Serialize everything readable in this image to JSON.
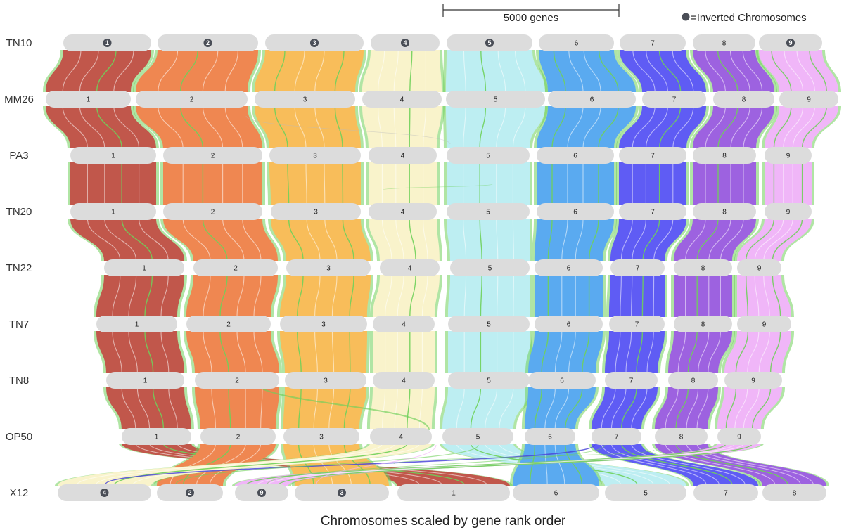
{
  "scale_bar": {
    "label": "5000 genes"
  },
  "legend": {
    "symbol_label": "=Inverted Chromosomes",
    "dot_color": "#4a4e57"
  },
  "footer": {
    "caption": "Chromosomes scaled by gene rank order"
  },
  "colors": {
    "chromosome_fill": "#dcdcdc",
    "inversion_marker": "#4a4e57",
    "segment_highlight": "#6fd05a",
    "translocation_line": "#4b48d8",
    "chromosome_colors": {
      "1": "#c1574b",
      "2": "#ef8751",
      "3": "#f8bd5a",
      "4": "#f9f3cb",
      "5": "#bdeef2",
      "6": "#5aaaf0",
      "7": "#5f5cf4",
      "8": "#9d62e0",
      "9": "#f0b6f8"
    }
  },
  "strains": [
    {
      "name": "TN10",
      "chromosomes": [
        {
          "label": "1",
          "inverted": true
        },
        {
          "label": "2",
          "inverted": true
        },
        {
          "label": "3",
          "inverted": true
        },
        {
          "label": "4",
          "inverted": true
        },
        {
          "label": "5",
          "inverted": true
        },
        {
          "label": "6",
          "inverted": false
        },
        {
          "label": "7",
          "inverted": false
        },
        {
          "label": "8",
          "inverted": false
        },
        {
          "label": "9",
          "inverted": true
        }
      ]
    },
    {
      "name": "MM26",
      "chromosomes": [
        {
          "label": "1",
          "inverted": false
        },
        {
          "label": "2",
          "inverted": false
        },
        {
          "label": "3",
          "inverted": false
        },
        {
          "label": "4",
          "inverted": false
        },
        {
          "label": "5",
          "inverted": false
        },
        {
          "label": "6",
          "inverted": false
        },
        {
          "label": "7",
          "inverted": false
        },
        {
          "label": "8",
          "inverted": false
        },
        {
          "label": "9",
          "inverted": false
        }
      ]
    },
    {
      "name": "PA3",
      "chromosomes": [
        {
          "label": "1",
          "inverted": false
        },
        {
          "label": "2",
          "inverted": false
        },
        {
          "label": "3",
          "inverted": false
        },
        {
          "label": "4",
          "inverted": false
        },
        {
          "label": "5",
          "inverted": false
        },
        {
          "label": "6",
          "inverted": false
        },
        {
          "label": "7",
          "inverted": false
        },
        {
          "label": "8",
          "inverted": false
        },
        {
          "label": "9",
          "inverted": false
        }
      ]
    },
    {
      "name": "TN20",
      "chromosomes": [
        {
          "label": "1",
          "inverted": false
        },
        {
          "label": "2",
          "inverted": false
        },
        {
          "label": "3",
          "inverted": false
        },
        {
          "label": "4",
          "inverted": false
        },
        {
          "label": "5",
          "inverted": false
        },
        {
          "label": "6",
          "inverted": false
        },
        {
          "label": "7",
          "inverted": false
        },
        {
          "label": "8",
          "inverted": false
        },
        {
          "label": "9",
          "inverted": false
        }
      ]
    },
    {
      "name": "TN22",
      "chromosomes": [
        {
          "label": "1",
          "inverted": false
        },
        {
          "label": "2",
          "inverted": false
        },
        {
          "label": "3",
          "inverted": false
        },
        {
          "label": "4",
          "inverted": false
        },
        {
          "label": "5",
          "inverted": false
        },
        {
          "label": "6",
          "inverted": false
        },
        {
          "label": "7",
          "inverted": false
        },
        {
          "label": "8",
          "inverted": false
        },
        {
          "label": "9",
          "inverted": false
        }
      ]
    },
    {
      "name": "TN7",
      "chromosomes": [
        {
          "label": "1",
          "inverted": false
        },
        {
          "label": "2",
          "inverted": false
        },
        {
          "label": "3",
          "inverted": false
        },
        {
          "label": "4",
          "inverted": false
        },
        {
          "label": "5",
          "inverted": false
        },
        {
          "label": "6",
          "inverted": false
        },
        {
          "label": "7",
          "inverted": false
        },
        {
          "label": "8",
          "inverted": false
        },
        {
          "label": "9",
          "inverted": false
        }
      ]
    },
    {
      "name": "TN8",
      "chromosomes": [
        {
          "label": "1",
          "inverted": false
        },
        {
          "label": "2",
          "inverted": false
        },
        {
          "label": "3",
          "inverted": false
        },
        {
          "label": "4",
          "inverted": false
        },
        {
          "label": "5",
          "inverted": false
        },
        {
          "label": "6",
          "inverted": false
        },
        {
          "label": "7",
          "inverted": false
        },
        {
          "label": "8",
          "inverted": false
        },
        {
          "label": "9",
          "inverted": false
        }
      ]
    },
    {
      "name": "OP50",
      "chromosomes": [
        {
          "label": "1",
          "inverted": false
        },
        {
          "label": "2",
          "inverted": false
        },
        {
          "label": "3",
          "inverted": false
        },
        {
          "label": "4",
          "inverted": false
        },
        {
          "label": "5",
          "inverted": false
        },
        {
          "label": "6",
          "inverted": false
        },
        {
          "label": "7",
          "inverted": false
        },
        {
          "label": "8",
          "inverted": false
        },
        {
          "label": "9",
          "inverted": false
        }
      ]
    },
    {
      "name": "X12",
      "chromosomes": [
        {
          "label": "4",
          "inverted": true
        },
        {
          "label": "2",
          "inverted": true
        },
        {
          "label": "9",
          "inverted": true
        },
        {
          "label": "3",
          "inverted": true
        },
        {
          "label": "1",
          "inverted": false
        },
        {
          "label": "6",
          "inverted": false
        },
        {
          "label": "5",
          "inverted": false
        },
        {
          "label": "7",
          "inverted": false
        },
        {
          "label": "8",
          "inverted": false
        }
      ]
    }
  ]
}
